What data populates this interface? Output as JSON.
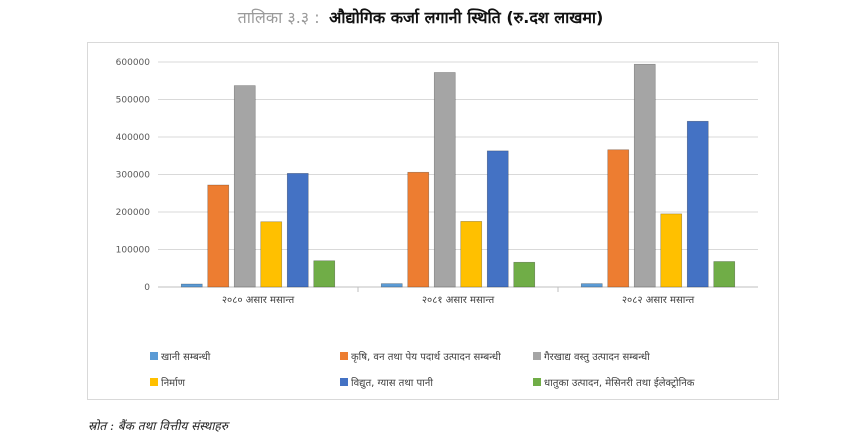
{
  "header": {
    "prefix": "तालिका ३.३ :",
    "title": "औद्योगिक कर्जा लगानी स्थिति",
    "unit": "(रु.दश लाखमा)"
  },
  "chart_data": {
    "type": "bar",
    "title": "औद्योगिक कर्जा लगानी स्थिति (रु.दश लाखमा)",
    "xlabel": "",
    "ylabel": "",
    "categories": [
      "२०८० असार मसान्त",
      "२०८१ असार मसान्त",
      "२०८२ असार मसान्त"
    ],
    "y_ticks": [
      "0",
      "100000",
      "200000",
      "300000",
      "400000",
      "500000",
      "600000"
    ],
    "ylim": [
      0,
      600000
    ],
    "grid": true,
    "legend_position": "bottom",
    "series": [
      {
        "name": "खानी सम्बन्धी",
        "color": "#5b9bd5",
        "values": [
          8000,
          9000,
          9000
        ]
      },
      {
        "name": "कृषि, वन तथा पेय पदार्थ उत्पादन सम्बन्धी",
        "color": "#ed7d31",
        "values": [
          272000,
          306000,
          366000
        ]
      },
      {
        "name": "गैरखाद्य वस्तु उत्पादन सम्बन्धी",
        "color": "#a5a5a5",
        "values": [
          537000,
          572000,
          594000
        ]
      },
      {
        "name": "निर्माण",
        "color": "#ffc000",
        "values": [
          174000,
          175000,
          195000
        ]
      },
      {
        "name": "विद्युत, ग्यास तथा पानी",
        "color": "#4472c4",
        "values": [
          303000,
          363000,
          442000
        ]
      },
      {
        "name": "धातुका उत्पादन, मेसिनरी तथा ईलेक्ट्रोनिक",
        "color": "#70ad47",
        "values": [
          70000,
          66000,
          68000
        ]
      }
    ]
  },
  "footer": {
    "source": "स्रोत : बैंक तथा वित्तीय संस्थाहरु"
  }
}
